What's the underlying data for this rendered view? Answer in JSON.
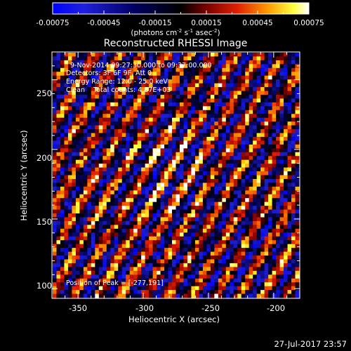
{
  "colorbar": {
    "tick_labels": [
      "-0.00075",
      "-0.00045",
      "-0.00015",
      "0.00015",
      "0.00045",
      "0.00075"
    ],
    "units_text": {
      "prefix": "(photons cm",
      "exp1": "-2",
      "mid1": " s",
      "exp2": "-1",
      "mid2": " asec",
      "exp3": "-2",
      "suffix": ")"
    },
    "range": [
      -0.00075,
      0.00075
    ]
  },
  "title": "Reconstructed RHESSI Image",
  "annotations": {
    "line1": "9-Nov-2014 09:27:30.000 to 09:37:00.000",
    "line2": "Detectors: 3F 6F 9F, Att 0",
    "line3": "Energy Range: 12.0 - 25.0 keV",
    "line4": "Clean    Total counts: 4.87E+03",
    "peak": "Position of Peak = [-277,191]"
  },
  "axes": {
    "xlabel": "Heliocentric X (arcsec)",
    "ylabel": "Heliocentric Y (arcsec)",
    "xticks": [
      "-350",
      "-300",
      "-250",
      "-200"
    ],
    "yticks": [
      "100",
      "150",
      "200",
      "250"
    ],
    "xrange": [
      -370,
      -180
    ],
    "yrange": [
      93,
      270
    ]
  },
  "timestamp": "27-Jul-2017 23:57",
  "colors": {
    "background": "#000000",
    "text": "#ffffff",
    "colormap": [
      "#0000ff",
      "#000000",
      "#c80000",
      "#ffff00",
      "#ffffff"
    ]
  }
}
